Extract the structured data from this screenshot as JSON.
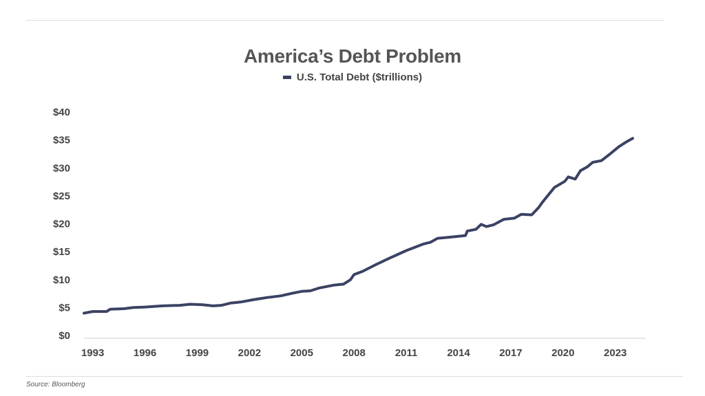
{
  "header": {
    "title": "America’s Debt Problem"
  },
  "legend": {
    "label": "U.S. Total Debt ($trillions)"
  },
  "footer": {
    "source": "Source: Bloomberg"
  },
  "colors": {
    "line": "#3b4263",
    "axis": "#cccccc",
    "text": "#444444"
  },
  "chart_data": {
    "type": "line",
    "title": "America’s Debt Problem",
    "xlabel": "",
    "ylabel": "",
    "xlim": [
      1992.5,
      2024.75
    ],
    "ylim": [
      0,
      40
    ],
    "xticks": [
      1993,
      1996,
      1999,
      2002,
      2005,
      2008,
      2011,
      2014,
      2017,
      2020,
      2023
    ],
    "xtick_labels": [
      "1993",
      "1996",
      "1999",
      "2002",
      "2005",
      "2008",
      "2011",
      "2014",
      "2017",
      "2020",
      "2023"
    ],
    "yticks": [
      0,
      5,
      10,
      15,
      20,
      25,
      30,
      35,
      40
    ],
    "ytick_labels": [
      "$0",
      "$5",
      "$10",
      "$15",
      "$20",
      "$25",
      "$30",
      "$35",
      "$40"
    ],
    "grid": false,
    "legend_position": "top-center",
    "series": [
      {
        "name": "U.S. Total Debt ($trillions)",
        "x": [
          1992.5,
          1993.0,
          1993.8,
          1994.0,
          1994.8,
          1995.3,
          1996.0,
          1997.0,
          1998.0,
          1998.6,
          1999.3,
          1999.9,
          2000.4,
          2000.9,
          2001.5,
          2002.2,
          2003.0,
          2003.8,
          2004.5,
          2005.0,
          2005.5,
          2006.0,
          2006.8,
          2007.4,
          2007.8,
          2008.0,
          2008.5,
          2009.2,
          2010.0,
          2011.0,
          2012.0,
          2012.4,
          2012.8,
          2013.5,
          2014.4,
          2014.5,
          2015.0,
          2015.3,
          2015.6,
          2016.0,
          2016.6,
          2017.2,
          2017.6,
          2018.2,
          2018.6,
          2018.8,
          2019.5,
          2020.1,
          2020.3,
          2020.7,
          2021.0,
          2021.4,
          2021.7,
          2022.2,
          2022.7,
          2023.2,
          2023.6,
          2024.0
        ],
        "values": [
          4.0,
          4.3,
          4.3,
          4.7,
          4.8,
          5.0,
          5.1,
          5.3,
          5.4,
          5.6,
          5.5,
          5.3,
          5.4,
          5.8,
          6.0,
          6.4,
          6.8,
          7.1,
          7.6,
          7.9,
          8.0,
          8.5,
          9.0,
          9.2,
          10.0,
          10.9,
          11.5,
          12.6,
          13.8,
          15.2,
          16.4,
          16.7,
          17.4,
          17.6,
          17.9,
          18.7,
          19.0,
          19.9,
          19.5,
          19.8,
          20.8,
          21.0,
          21.7,
          21.6,
          22.9,
          23.8,
          26.5,
          27.6,
          28.4,
          28.0,
          29.5,
          30.2,
          31.0,
          31.3,
          32.5,
          33.8,
          34.6,
          35.3
        ]
      }
    ]
  }
}
